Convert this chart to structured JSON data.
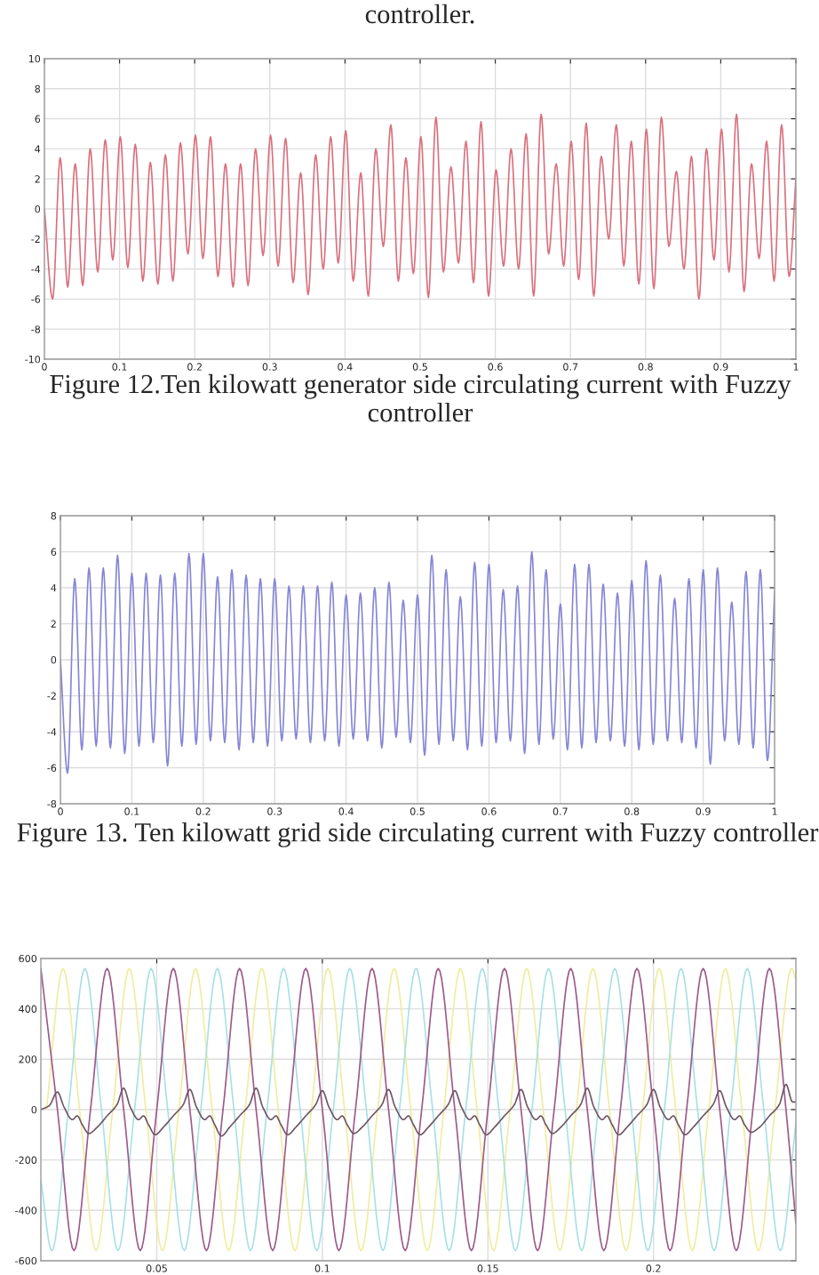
{
  "chart_data": [
    {
      "type": "line",
      "title": "controller.",
      "annotations": [
        "Figure 12.Ten kilowatt generator side circulating current with Fuzzy controller"
      ],
      "xlim": [
        0,
        1
      ],
      "ylim": [
        -10,
        10
      ],
      "xticks": [
        0,
        0.1,
        0.2,
        0.3,
        0.4,
        0.5,
        0.6,
        0.7,
        0.8,
        0.9,
        1
      ],
      "yticks": [
        -10,
        -8,
        -6,
        -4,
        -2,
        0,
        2,
        4,
        6,
        8,
        10
      ],
      "grid": true,
      "series": [
        {
          "color": "#d9707e",
          "x": [
            0,
            0.011,
            0.021,
            0.031,
            0.041,
            0.051,
            0.061,
            0.071,
            0.081,
            0.091,
            0.101,
            0.111,
            0.121,
            0.131,
            0.141,
            0.151,
            0.161,
            0.171,
            0.181,
            0.191,
            0.201,
            0.211,
            0.221,
            0.231,
            0.241,
            0.251,
            0.261,
            0.271,
            0.281,
            0.291,
            0.301,
            0.311,
            0.321,
            0.331,
            0.341,
            0.351,
            0.361,
            0.371,
            0.381,
            0.391,
            0.401,
            0.411,
            0.421,
            0.431,
            0.441,
            0.451,
            0.461,
            0.471,
            0.481,
            0.491,
            0.501,
            0.511,
            0.521,
            0.531,
            0.541,
            0.551,
            0.561,
            0.571,
            0.581,
            0.591,
            0.601,
            0.611,
            0.621,
            0.631,
            0.641,
            0.651,
            0.661,
            0.671,
            0.681,
            0.691,
            0.701,
            0.711,
            0.721,
            0.731,
            0.741,
            0.751,
            0.761,
            0.771,
            0.781,
            0.791,
            0.801,
            0.811,
            0.821,
            0.831,
            0.841,
            0.851,
            0.861,
            0.871,
            0.881,
            0.891,
            0.901,
            0.911,
            0.921,
            0.931,
            0.941,
            0.951,
            0.961,
            0.971,
            0.981,
            0.991,
            1
          ],
          "values": [
            0,
            -6.0,
            3.4,
            -5.2,
            3.0,
            -5.1,
            4.0,
            -4.2,
            4.6,
            -3.4,
            4.8,
            -3.9,
            4.3,
            -4.8,
            3.1,
            -5.0,
            3.6,
            -4.8,
            4.4,
            -3.0,
            4.9,
            -3.3,
            4.8,
            -4.5,
            3.0,
            -5.2,
            3.0,
            -5.1,
            4.0,
            -3.1,
            4.9,
            -3.8,
            4.7,
            -4.9,
            2.4,
            -5.7,
            3.6,
            -4.0,
            4.8,
            -3.6,
            5.2,
            -4.8,
            2.4,
            -5.8,
            4.0,
            -2.5,
            5.6,
            -4.8,
            3.4,
            -4.3,
            4.8,
            -5.9,
            6.1,
            -4.2,
            2.8,
            -3.6,
            4.5,
            -4.9,
            5.8,
            -5.8,
            2.6,
            -3.8,
            4.0,
            -4.0,
            5.0,
            -5.8,
            6.3,
            -3.0,
            3.0,
            -3.8,
            4.5,
            -4.7,
            5.7,
            -5.8,
            3.5,
            -2.0,
            5.6,
            -3.8,
            4.5,
            -5.0,
            5.3,
            -5.3,
            6.1,
            -2.5,
            2.5,
            -4.0,
            3.5,
            -6.0,
            4.0,
            -3.4,
            5.3,
            -4.2,
            6.3,
            -5.5,
            3.0,
            -3.3,
            4.5,
            -4.8,
            5.6,
            -4.5,
            2.0
          ]
        }
      ]
    },
    {
      "type": "line",
      "annotations": [
        "Figure 13. Ten kilowatt grid side circulating current with Fuzzy controller"
      ],
      "xlim": [
        0,
        1
      ],
      "ylim": [
        -8,
        8
      ],
      "xticks": [
        0,
        0.1,
        0.2,
        0.3,
        0.4,
        0.5,
        0.6,
        0.7,
        0.8,
        0.9,
        1
      ],
      "yticks": [
        -8,
        -6,
        -4,
        -2,
        0,
        2,
        4,
        6,
        8
      ],
      "grid": true,
      "series": [
        {
          "color": "#8585d6",
          "x": [
            0,
            0.01,
            0.02,
            0.03,
            0.04,
            0.05,
            0.06,
            0.07,
            0.08,
            0.09,
            0.1,
            0.11,
            0.12,
            0.13,
            0.14,
            0.15,
            0.16,
            0.17,
            0.18,
            0.19,
            0.2,
            0.21,
            0.22,
            0.23,
            0.24,
            0.25,
            0.26,
            0.27,
            0.28,
            0.29,
            0.3,
            0.31,
            0.32,
            0.33,
            0.34,
            0.35,
            0.36,
            0.37,
            0.38,
            0.39,
            0.4,
            0.41,
            0.42,
            0.43,
            0.44,
            0.45,
            0.46,
            0.47,
            0.48,
            0.49,
            0.5,
            0.51,
            0.52,
            0.53,
            0.54,
            0.55,
            0.56,
            0.57,
            0.58,
            0.59,
            0.6,
            0.61,
            0.62,
            0.63,
            0.64,
            0.65,
            0.66,
            0.67,
            0.68,
            0.69,
            0.7,
            0.71,
            0.72,
            0.73,
            0.74,
            0.75,
            0.76,
            0.77,
            0.78,
            0.79,
            0.8,
            0.81,
            0.82,
            0.83,
            0.84,
            0.85,
            0.86,
            0.87,
            0.88,
            0.89,
            0.9,
            0.91,
            0.92,
            0.93,
            0.94,
            0.95,
            0.96,
            0.97,
            0.98,
            0.99,
            1
          ],
          "values": [
            0,
            -6.3,
            4.5,
            -5.0,
            5.1,
            -4.8,
            5.1,
            -4.9,
            5.8,
            -5.2,
            4.8,
            -4.8,
            4.8,
            -4.6,
            4.7,
            -5.9,
            4.8,
            -4.8,
            5.9,
            -4.7,
            5.9,
            -4.5,
            4.6,
            -4.6,
            5.0,
            -5.0,
            4.7,
            -4.6,
            4.5,
            -4.8,
            4.5,
            -4.5,
            4.1,
            -4.4,
            4.1,
            -4.6,
            4.1,
            -4.5,
            4.3,
            -4.8,
            3.6,
            -4.4,
            3.7,
            -4.5,
            4.0,
            -4.9,
            4.3,
            -4.3,
            3.3,
            -4.6,
            3.6,
            -5.3,
            5.8,
            -4.7,
            5.0,
            -4.5,
            3.5,
            -5.0,
            5.4,
            -4.8,
            5.3,
            -4.6,
            3.9,
            -4.5,
            4.1,
            -5.2,
            6.0,
            -4.7,
            5.0,
            -4.4,
            3.1,
            -5.0,
            5.3,
            -4.9,
            5.3,
            -4.6,
            4.2,
            -4.5,
            3.7,
            -4.8,
            4.4,
            -5.0,
            5.5,
            -4.7,
            4.7,
            -4.5,
            3.4,
            -4.6,
            4.5,
            -4.9,
            5.0,
            -5.8,
            5.1,
            -4.5,
            3.2,
            -4.7,
            4.9,
            -4.9,
            5.0,
            -5.6,
            3.8
          ]
        }
      ]
    },
    {
      "type": "line",
      "xlim": [
        0.015,
        0.243
      ],
      "ylim": [
        -600,
        600
      ],
      "xticks": [
        0.05,
        0.1,
        0.15,
        0.2
      ],
      "yticks": [
        -600,
        -400,
        -200,
        0,
        200,
        400,
        600
      ],
      "grid": true,
      "series": [
        {
          "color": "#f0eca0",
          "x": [
            0.0167,
            0.0217,
            0.0267,
            0.0317,
            0.0367,
            0.0417,
            0.0467,
            0.0517,
            0.0567,
            0.0617,
            0.0667,
            0.0717,
            0.0767,
            0.0817,
            0.0867,
            0.0917,
            0.0967,
            0.1017,
            0.1067,
            0.1117,
            0.1167,
            0.1217,
            0.1267,
            0.1317,
            0.1367,
            0.1417,
            0.1467,
            0.1517,
            0.1567,
            0.1617,
            0.1667,
            0.1717,
            0.1767,
            0.1817,
            0.1867,
            0.1917,
            0.1967,
            0.2017,
            0.2067,
            0.2117,
            0.2167,
            0.2217,
            0.2267,
            0.2317,
            0.2367,
            0.2417,
            0.243
          ],
          "values": [
            0,
            560,
            0,
            -560,
            0,
            560,
            0,
            -560,
            0,
            560,
            0,
            -560,
            0,
            560,
            0,
            -560,
            0,
            560,
            0,
            -560,
            0,
            560,
            0,
            -560,
            0,
            560,
            0,
            -560,
            0,
            560,
            0,
            -560,
            0,
            560,
            0,
            -560,
            0,
            560,
            0,
            -560,
            0,
            560,
            0,
            -560,
            0,
            560,
            514
          ]
        },
        {
          "color": "#a8e0e6",
          "x": [
            0.015,
            0.0183,
            0.0233,
            0.0283,
            0.0333,
            0.0383,
            0.0433,
            0.0483,
            0.0533,
            0.0583,
            0.0633,
            0.0683,
            0.0733,
            0.0783,
            0.0833,
            0.0883,
            0.0933,
            0.0983,
            0.1033,
            0.1083,
            0.1133,
            0.1183,
            0.1233,
            0.1283,
            0.1333,
            0.1383,
            0.1433,
            0.1483,
            0.1533,
            0.1583,
            0.1633,
            0.1683,
            0.1733,
            0.1783,
            0.1833,
            0.1883,
            0.1933,
            0.1983,
            0.2033,
            0.2083,
            0.2133,
            0.2183,
            0.2233,
            0.2283,
            0.2333,
            0.2383,
            0.243
          ],
          "values": [
            -280,
            -560,
            0,
            560,
            0,
            -560,
            0,
            560,
            0,
            -560,
            0,
            560,
            0,
            -560,
            0,
            560,
            0,
            -560,
            0,
            560,
            0,
            -560,
            0,
            560,
            0,
            -560,
            0,
            560,
            0,
            -560,
            0,
            560,
            0,
            -560,
            0,
            560,
            0,
            -560,
            0,
            560,
            0,
            -560,
            0,
            560,
            0,
            -560,
            -53
          ]
        },
        {
          "color": "#9c5a8a",
          "x": [
            0.015,
            0.02,
            0.025,
            0.03,
            0.035,
            0.04,
            0.045,
            0.05,
            0.055,
            0.06,
            0.065,
            0.07,
            0.075,
            0.08,
            0.085,
            0.09,
            0.095,
            0.1,
            0.105,
            0.11,
            0.115,
            0.12,
            0.125,
            0.13,
            0.135,
            0.14,
            0.145,
            0.15,
            0.155,
            0.16,
            0.165,
            0.17,
            0.175,
            0.18,
            0.185,
            0.19,
            0.195,
            0.2,
            0.205,
            0.21,
            0.215,
            0.22,
            0.225,
            0.23,
            0.235,
            0.24,
            0.243
          ],
          "values": [
            560,
            0,
            -560,
            0,
            560,
            0,
            -560,
            0,
            560,
            0,
            -560,
            0,
            560,
            0,
            -560,
            0,
            560,
            0,
            -560,
            0,
            560,
            0,
            -560,
            0,
            560,
            0,
            -560,
            0,
            560,
            0,
            -560,
            0,
            560,
            0,
            -560,
            0,
            560,
            0,
            -560,
            0,
            560,
            0,
            -560,
            0,
            560,
            0,
            -453
          ]
        },
        {
          "color": "#6e5566",
          "x": [
            0.015,
            0.0175,
            0.02,
            0.022,
            0.0245,
            0.026,
            0.0275,
            0.0295,
            0.032,
            0.035,
            0.038,
            0.04,
            0.042,
            0.0445,
            0.046,
            0.0475,
            0.0495,
            0.052,
            0.055,
            0.058,
            0.06,
            0.062,
            0.0645,
            0.066,
            0.0675,
            0.0695,
            0.072,
            0.075,
            0.078,
            0.08,
            0.082,
            0.0845,
            0.086,
            0.0875,
            0.0895,
            0.092,
            0.095,
            0.098,
            0.1,
            0.102,
            0.1045,
            0.106,
            0.1075,
            0.1095,
            0.112,
            0.115,
            0.118,
            0.12,
            0.122,
            0.1245,
            0.126,
            0.1275,
            0.1295,
            0.132,
            0.135,
            0.138,
            0.14,
            0.142,
            0.1445,
            0.146,
            0.1475,
            0.1495,
            0.152,
            0.155,
            0.158,
            0.16,
            0.162,
            0.1645,
            0.166,
            0.1675,
            0.1695,
            0.172,
            0.175,
            0.178,
            0.18,
            0.182,
            0.1845,
            0.186,
            0.1875,
            0.1895,
            0.192,
            0.195,
            0.198,
            0.2,
            0.202,
            0.2045,
            0.206,
            0.2075,
            0.2095,
            0.212,
            0.215,
            0.218,
            0.22,
            0.222,
            0.2245,
            0.226,
            0.2275,
            0.2295,
            0.232,
            0.235,
            0.238,
            0.24,
            0.242,
            0.243
          ],
          "values": [
            0,
            15,
            70,
            10,
            -40,
            -25,
            -60,
            -95,
            -70,
            -25,
            20,
            85,
            10,
            -40,
            -25,
            -60,
            -100,
            -70,
            -25,
            20,
            80,
            10,
            -40,
            -25,
            -60,
            -105,
            -70,
            -25,
            20,
            85,
            10,
            -40,
            -25,
            -60,
            -100,
            -70,
            -25,
            20,
            75,
            10,
            -40,
            -25,
            -60,
            -95,
            -70,
            -25,
            20,
            80,
            10,
            -40,
            -25,
            -60,
            -100,
            -70,
            -25,
            20,
            75,
            10,
            -40,
            -25,
            -60,
            -100,
            -70,
            -25,
            20,
            80,
            10,
            -40,
            -25,
            -60,
            -95,
            -70,
            -25,
            20,
            85,
            10,
            -40,
            -25,
            -60,
            -100,
            -70,
            -25,
            20,
            80,
            10,
            -40,
            -25,
            -60,
            -100,
            -70,
            -25,
            20,
            75,
            10,
            -40,
            -25,
            -60,
            -90,
            -70,
            -25,
            20,
            100,
            30,
            30
          ]
        }
      ]
    }
  ]
}
